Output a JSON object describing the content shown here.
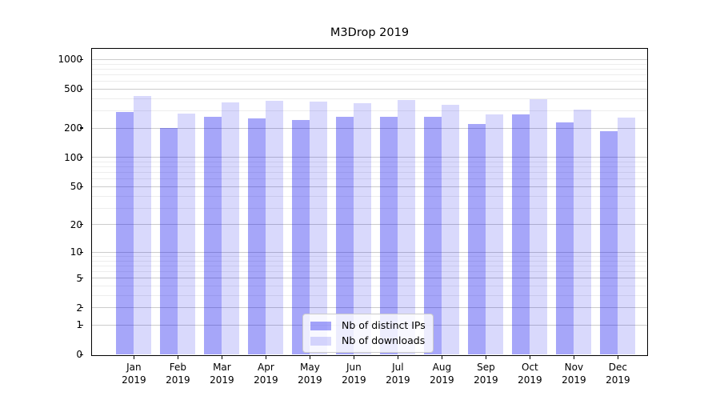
{
  "title": "M3Drop 2019",
  "chart_data": {
    "type": "bar",
    "title": "M3Drop 2019",
    "scale": "log1p",
    "grid": true,
    "legend_position": "lower center",
    "year": "2019",
    "months": [
      "Jan",
      "Feb",
      "Mar",
      "Apr",
      "May",
      "Jun",
      "Jul",
      "Aug",
      "Sep",
      "Oct",
      "Nov",
      "Dec"
    ],
    "categories": [
      "Jan 2019",
      "Feb 2019",
      "Mar 2019",
      "Apr 2019",
      "May 2019",
      "Jun 2019",
      "Jul 2019",
      "Aug 2019",
      "Sep 2019",
      "Oct 2019",
      "Nov 2019",
      "Dec 2019"
    ],
    "series": [
      {
        "name": "Nb of distinct IPs",
        "color": "rgba(0,0,238,0.35)",
        "values": [
          292,
          198,
          258,
          250,
          238,
          261,
          261,
          257,
          220,
          273,
          227,
          186
        ]
      },
      {
        "name": "Nb of downloads",
        "color": "rgba(0,0,238,0.15)",
        "values": [
          425,
          277,
          361,
          380,
          368,
          357,
          387,
          346,
          273,
          388,
          305,
          253
        ]
      }
    ],
    "y_major_ticks": [
      0,
      1,
      2,
      5,
      10,
      20,
      50,
      100,
      200,
      500,
      1000
    ],
    "y_minor_ticks": [
      3,
      4,
      6,
      7,
      8,
      9,
      30,
      40,
      60,
      70,
      80,
      90,
      300,
      400,
      600,
      700,
      800,
      900
    ],
    "y_axis_max": 1273,
    "ylim": [
      0,
      1273
    ]
  }
}
